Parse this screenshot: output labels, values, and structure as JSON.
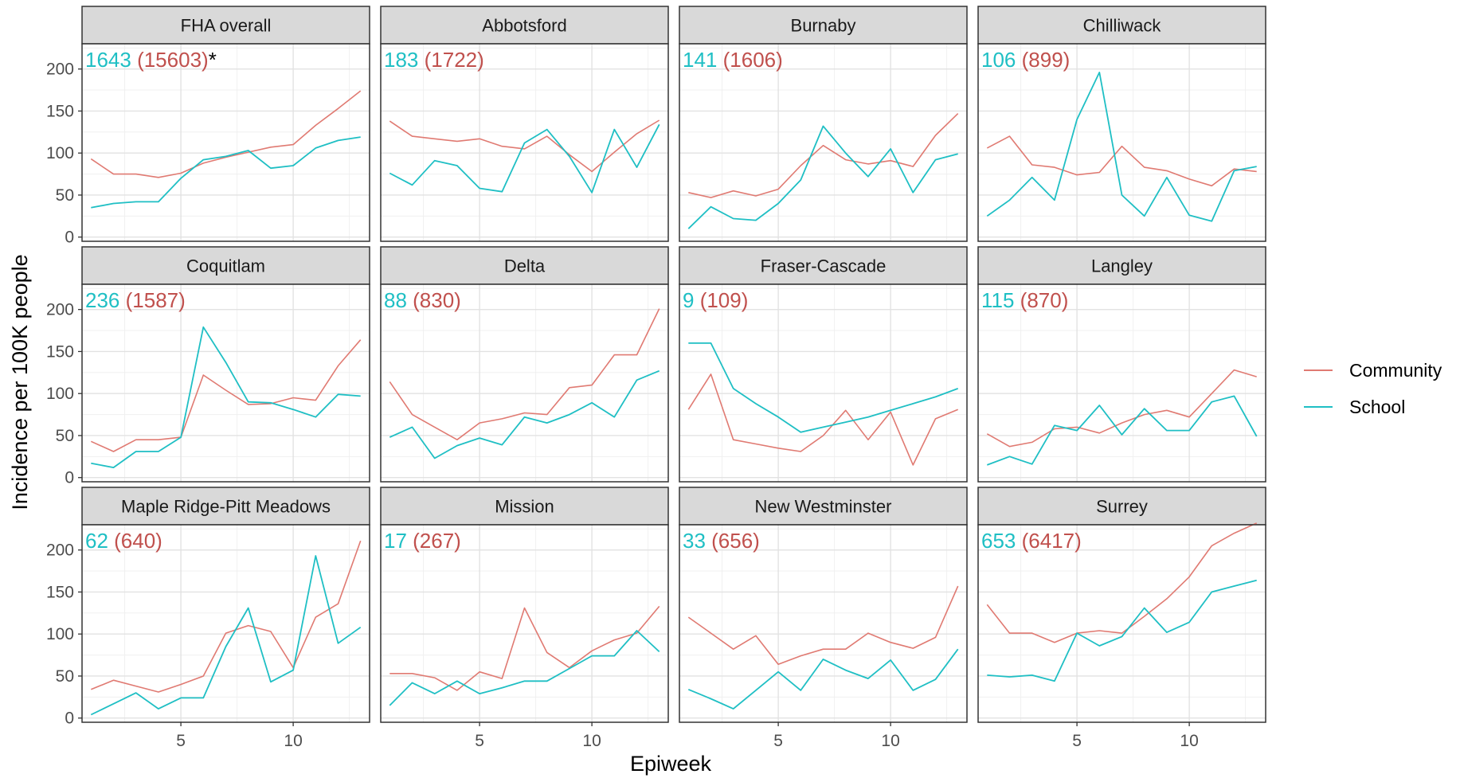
{
  "colors": {
    "community": "#E07A72",
    "school": "#1FBFC4",
    "community_text": "#C0504D"
  },
  "chart_data": {
    "type": "line",
    "layout": "facet_grid",
    "xlabel": "Epiweek",
    "ylabel": "Incidence per 100K people",
    "xticks": [
      5,
      10
    ],
    "xlim": [
      0.6,
      13.4
    ],
    "yticks": [
      0,
      50,
      100,
      150,
      200
    ],
    "ylim": [
      -5,
      230
    ],
    "grid": true,
    "legend": {
      "position": "right",
      "entries": [
        "Community",
        "School"
      ]
    },
    "x": [
      1,
      2,
      3,
      4,
      5,
      6,
      7,
      8,
      9,
      10,
      11,
      12,
      13
    ],
    "panels": [
      {
        "title": "FHA overall",
        "school_count": "1643",
        "community_count": "(15603)",
        "note": "*",
        "community": [
          93,
          75,
          75,
          71,
          76,
          88,
          95,
          101,
          107,
          110,
          133,
          153,
          174
        ],
        "school": [
          35,
          40,
          42,
          42,
          70,
          92,
          96,
          103,
          82,
          85,
          106,
          115,
          119
        ]
      },
      {
        "title": "Abbotsford",
        "school_count": "183",
        "community_count": "(1722)",
        "note": "",
        "community": [
          138,
          120,
          117,
          114,
          117,
          108,
          105,
          120,
          98,
          78,
          101,
          123,
          139
        ],
        "school": [
          76,
          62,
          91,
          85,
          58,
          54,
          112,
          128,
          96,
          53,
          128,
          83,
          134
        ]
      },
      {
        "title": "Burnaby",
        "school_count": "141",
        "community_count": "(1606)",
        "note": "",
        "community": [
          53,
          47,
          55,
          49,
          57,
          85,
          109,
          92,
          87,
          91,
          84,
          121,
          147
        ],
        "school": [
          10,
          36,
          22,
          20,
          40,
          68,
          132,
          100,
          72,
          105,
          53,
          92,
          99
        ]
      },
      {
        "title": "Chilliwack",
        "school_count": "106",
        "community_count": "(899)",
        "note": "",
        "community": [
          106,
          120,
          86,
          83,
          74,
          77,
          108,
          83,
          79,
          69,
          61,
          81,
          78
        ],
        "school": [
          25,
          44,
          71,
          44,
          140,
          196,
          50,
          25,
          71,
          26,
          19,
          79,
          84
        ]
      },
      {
        "title": "Coquitlam",
        "school_count": "236",
        "community_count": "(1587)",
        "note": "",
        "community": [
          43,
          31,
          45,
          45,
          48,
          122,
          104,
          87,
          88,
          95,
          92,
          133,
          164
        ],
        "school": [
          17,
          12,
          31,
          31,
          48,
          179,
          137,
          90,
          89,
          81,
          72,
          99,
          97
        ]
      },
      {
        "title": "Delta",
        "school_count": "88",
        "community_count": "(830)",
        "note": "",
        "community": [
          114,
          75,
          60,
          45,
          65,
          70,
          77,
          75,
          107,
          110,
          146,
          146,
          201
        ],
        "school": [
          48,
          60,
          23,
          38,
          47,
          39,
          72,
          65,
          75,
          89,
          72,
          116,
          127
        ]
      },
      {
        "title": "Fraser-Cascade",
        "school_count": "9",
        "community_count": "(109)",
        "note": "",
        "community": [
          81,
          123,
          45,
          40,
          35,
          31,
          50,
          80,
          45,
          78,
          15,
          70,
          81
        ],
        "school": [
          160,
          160,
          106,
          88,
          72,
          54,
          60,
          66,
          72,
          80,
          88,
          96,
          106
        ]
      },
      {
        "title": "Langley",
        "school_count": "115",
        "community_count": "(870)",
        "note": "",
        "community": [
          52,
          37,
          42,
          58,
          60,
          53,
          65,
          75,
          80,
          72,
          100,
          128,
          120
        ],
        "school": [
          15,
          25,
          16,
          62,
          56,
          86,
          51,
          82,
          56,
          56,
          90,
          97,
          49
        ]
      },
      {
        "title": "Maple Ridge-Pitt Meadows",
        "school_count": "62",
        "community_count": "(640)",
        "note": "",
        "community": [
          34,
          45,
          38,
          31,
          40,
          50,
          101,
          110,
          103,
          60,
          120,
          136,
          211
        ],
        "school": [
          4,
          17,
          30,
          11,
          24,
          24,
          85,
          131,
          43,
          57,
          193,
          89,
          108
        ]
      },
      {
        "title": "Mission",
        "school_count": "17",
        "community_count": "(267)",
        "note": "",
        "community": [
          53,
          53,
          48,
          33,
          55,
          47,
          131,
          78,
          60,
          80,
          93,
          101,
          133
        ],
        "school": [
          15,
          42,
          29,
          44,
          29,
          36,
          44,
          44,
          59,
          74,
          74,
          104,
          79
        ]
      },
      {
        "title": "New Westminster",
        "school_count": "33",
        "community_count": "(656)",
        "note": "",
        "community": [
          120,
          101,
          82,
          98,
          64,
          74,
          82,
          82,
          101,
          90,
          83,
          96,
          157
        ],
        "school": [
          34,
          23,
          11,
          33,
          55,
          33,
          70,
          57,
          47,
          69,
          33,
          46,
          82
        ]
      },
      {
        "title": "Surrey",
        "school_count": "653",
        "community_count": "(6417)",
        "note": "",
        "community": [
          135,
          101,
          101,
          90,
          101,
          104,
          101,
          121,
          142,
          168,
          205,
          220,
          232
        ],
        "school": [
          51,
          49,
          51,
          44,
          101,
          86,
          97,
          131,
          102,
          114,
          150,
          157,
          164
        ]
      }
    ]
  }
}
